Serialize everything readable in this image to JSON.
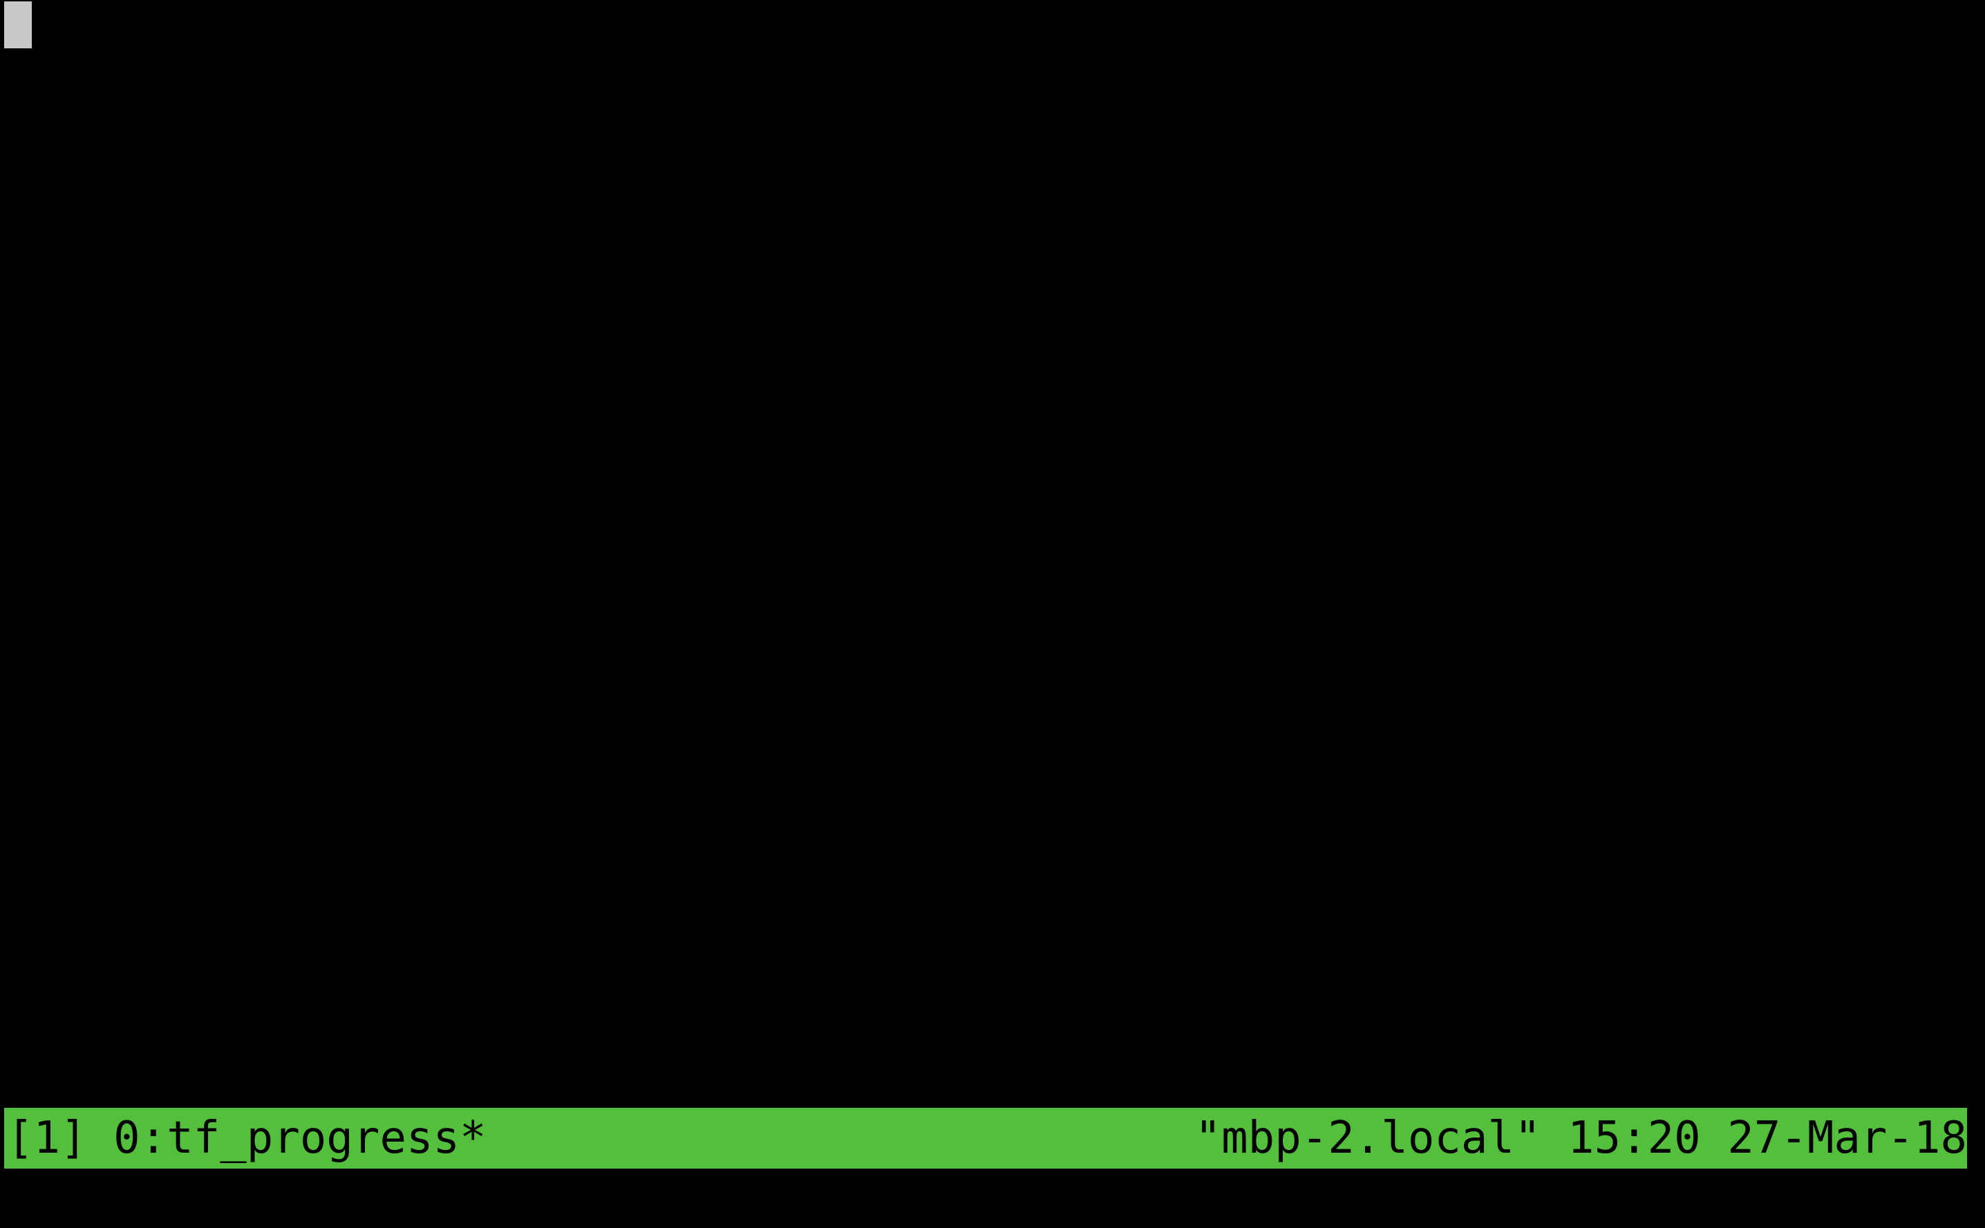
{
  "colors": {
    "background": "#000000",
    "status_bar": "#53bf3c",
    "status_text": "#000000",
    "cursor": "#c8c8c8"
  },
  "status_bar": {
    "session": "[1]",
    "window": "0:tf_progress*",
    "host": "\"mbp-2.local\"",
    "time": "15:20",
    "date": "27-Mar-18"
  }
}
